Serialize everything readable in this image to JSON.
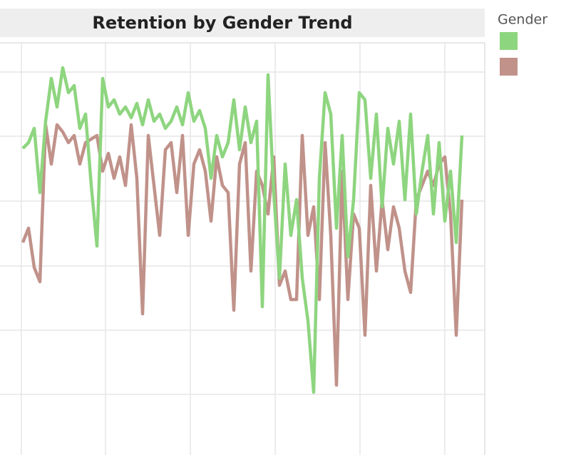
{
  "chart_data": {
    "type": "line",
    "title": "Retention by Gender Trend",
    "legend_title": "Gender",
    "xlim": [
      0,
      680
    ],
    "ylim": [
      0,
      578
    ],
    "xgrid": [
      30,
      148,
      267,
      386,
      505,
      624
    ],
    "ygrid": [
      85,
      175,
      265,
      356,
      447,
      537
    ],
    "x": [
      32,
      40,
      48,
      56,
      64,
      72,
      80,
      88,
      96,
      104,
      112,
      120,
      128,
      136,
      144,
      152,
      160,
      168,
      176,
      184,
      192,
      200,
      208,
      216,
      224,
      232,
      240,
      248,
      256,
      264,
      272,
      280,
      288,
      296,
      304,
      312,
      320,
      328,
      336,
      344,
      352,
      360,
      368,
      376,
      384,
      392,
      400,
      408,
      416,
      424,
      432,
      440,
      448,
      456,
      464,
      472,
      480,
      488,
      496,
      504,
      512,
      520,
      528,
      536,
      544,
      552,
      560,
      568,
      576,
      584,
      592,
      600,
      608,
      616,
      624,
      632,
      640,
      648
    ],
    "series": [
      {
        "color": "#c0928a",
        "values": [
          298,
          318,
          263,
          243,
          463,
          408,
          463,
          453,
          438,
          448,
          408,
          438,
          443,
          448,
          398,
          423,
          388,
          418,
          378,
          463,
          388,
          198,
          448,
          378,
          308,
          428,
          438,
          368,
          448,
          308,
          408,
          428,
          398,
          328,
          418,
          378,
          368,
          203,
          408,
          438,
          258,
          398,
          378,
          338,
          418,
          238,
          258,
          218,
          218,
          448,
          308,
          348,
          218,
          438,
          308,
          98,
          398,
          218,
          338,
          318,
          168,
          378,
          258,
          358,
          288,
          348,
          318,
          258,
          228,
          358,
          378,
          398,
          378,
          408,
          418,
          338,
          168,
          358
        ]
      },
      {
        "color": "#8ed57f",
        "values": [
          430,
          438,
          458,
          368,
          468,
          528,
          488,
          543,
          508,
          518,
          458,
          478,
          378,
          293,
          528,
          488,
          498,
          478,
          488,
          473,
          493,
          463,
          498,
          468,
          478,
          458,
          468,
          488,
          463,
          508,
          468,
          483,
          458,
          388,
          448,
          418,
          438,
          498,
          428,
          488,
          438,
          468,
          208,
          533,
          368,
          248,
          408,
          308,
          358,
          248,
          188,
          88,
          388,
          508,
          478,
          318,
          448,
          278,
          358,
          508,
          498,
          388,
          478,
          348,
          458,
          408,
          468,
          358,
          478,
          338,
          398,
          448,
          338,
          438,
          328,
          398,
          298,
          448
        ]
      }
    ]
  }
}
